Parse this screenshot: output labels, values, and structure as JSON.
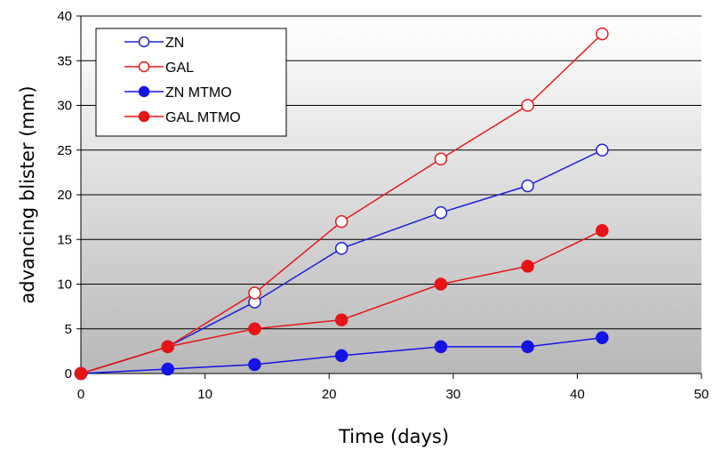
{
  "chart_data": {
    "type": "line",
    "title": "",
    "xlabel": "Time (days)",
    "ylabel": "advancing blister (mm)",
    "xlim": [
      0,
      50
    ],
    "ylim": [
      0,
      40
    ],
    "xticks": [
      0,
      10,
      20,
      30,
      40,
      50
    ],
    "yticks": [
      0,
      5,
      10,
      15,
      20,
      25,
      30,
      35,
      40
    ],
    "grid": "horizontal",
    "background": "gradient white to gray",
    "legend_position": "top-left",
    "x": [
      0,
      7,
      14,
      21,
      29,
      36,
      42
    ],
    "series": [
      {
        "name": "ZN",
        "color": "#1f1fd9",
        "marker": "open-circle",
        "values": [
          0,
          3,
          8,
          14,
          18,
          21,
          25
        ]
      },
      {
        "name": "GAL",
        "color": "#e31b1b",
        "marker": "open-circle",
        "values": [
          0,
          3,
          9,
          17,
          24,
          30,
          38
        ]
      },
      {
        "name": "ZN MTMO",
        "color": "#1414e6",
        "marker": "filled-circle",
        "values": [
          0,
          0.5,
          1,
          2,
          3,
          3,
          4
        ]
      },
      {
        "name": "GAL MTMO",
        "color": "#e61414",
        "marker": "filled-circle",
        "values": [
          0,
          3,
          5,
          6,
          10,
          12,
          16
        ]
      }
    ]
  }
}
